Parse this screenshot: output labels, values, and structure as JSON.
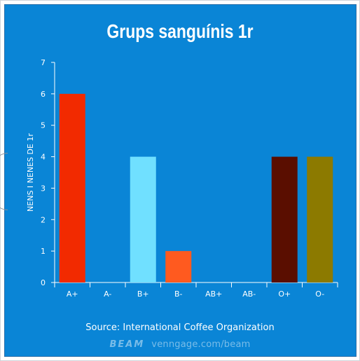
{
  "chart_data": {
    "type": "bar",
    "title": "Grups sanguínis 1r",
    "ylabel": "NENS I NENES DE 1r",
    "xlabel": "",
    "categories": [
      "A+",
      "A-",
      "B+",
      "B-",
      "AB+",
      "AB-",
      "O+",
      "O-"
    ],
    "values": [
      6,
      0,
      4,
      1,
      0,
      0,
      4,
      4
    ],
    "bar_colors": [
      "#f22a00",
      "#0a85d6",
      "#70e0ff",
      "#ff5a1f",
      "#0a85d6",
      "#0a85d6",
      "#5a0e00",
      "#8c7a00"
    ],
    "ylim": [
      0,
      7
    ],
    "yticks": [
      0,
      1,
      2,
      3,
      4,
      5,
      6,
      7
    ],
    "grid": false,
    "legend": "none",
    "source": "Source: International Coffee Organization"
  },
  "branding": {
    "logo_text": "BEAM",
    "url_text": "venngage.com/beam"
  },
  "colors": {
    "background": "#0a85d6",
    "axis": "#ffffff",
    "text": "#ffffff"
  }
}
